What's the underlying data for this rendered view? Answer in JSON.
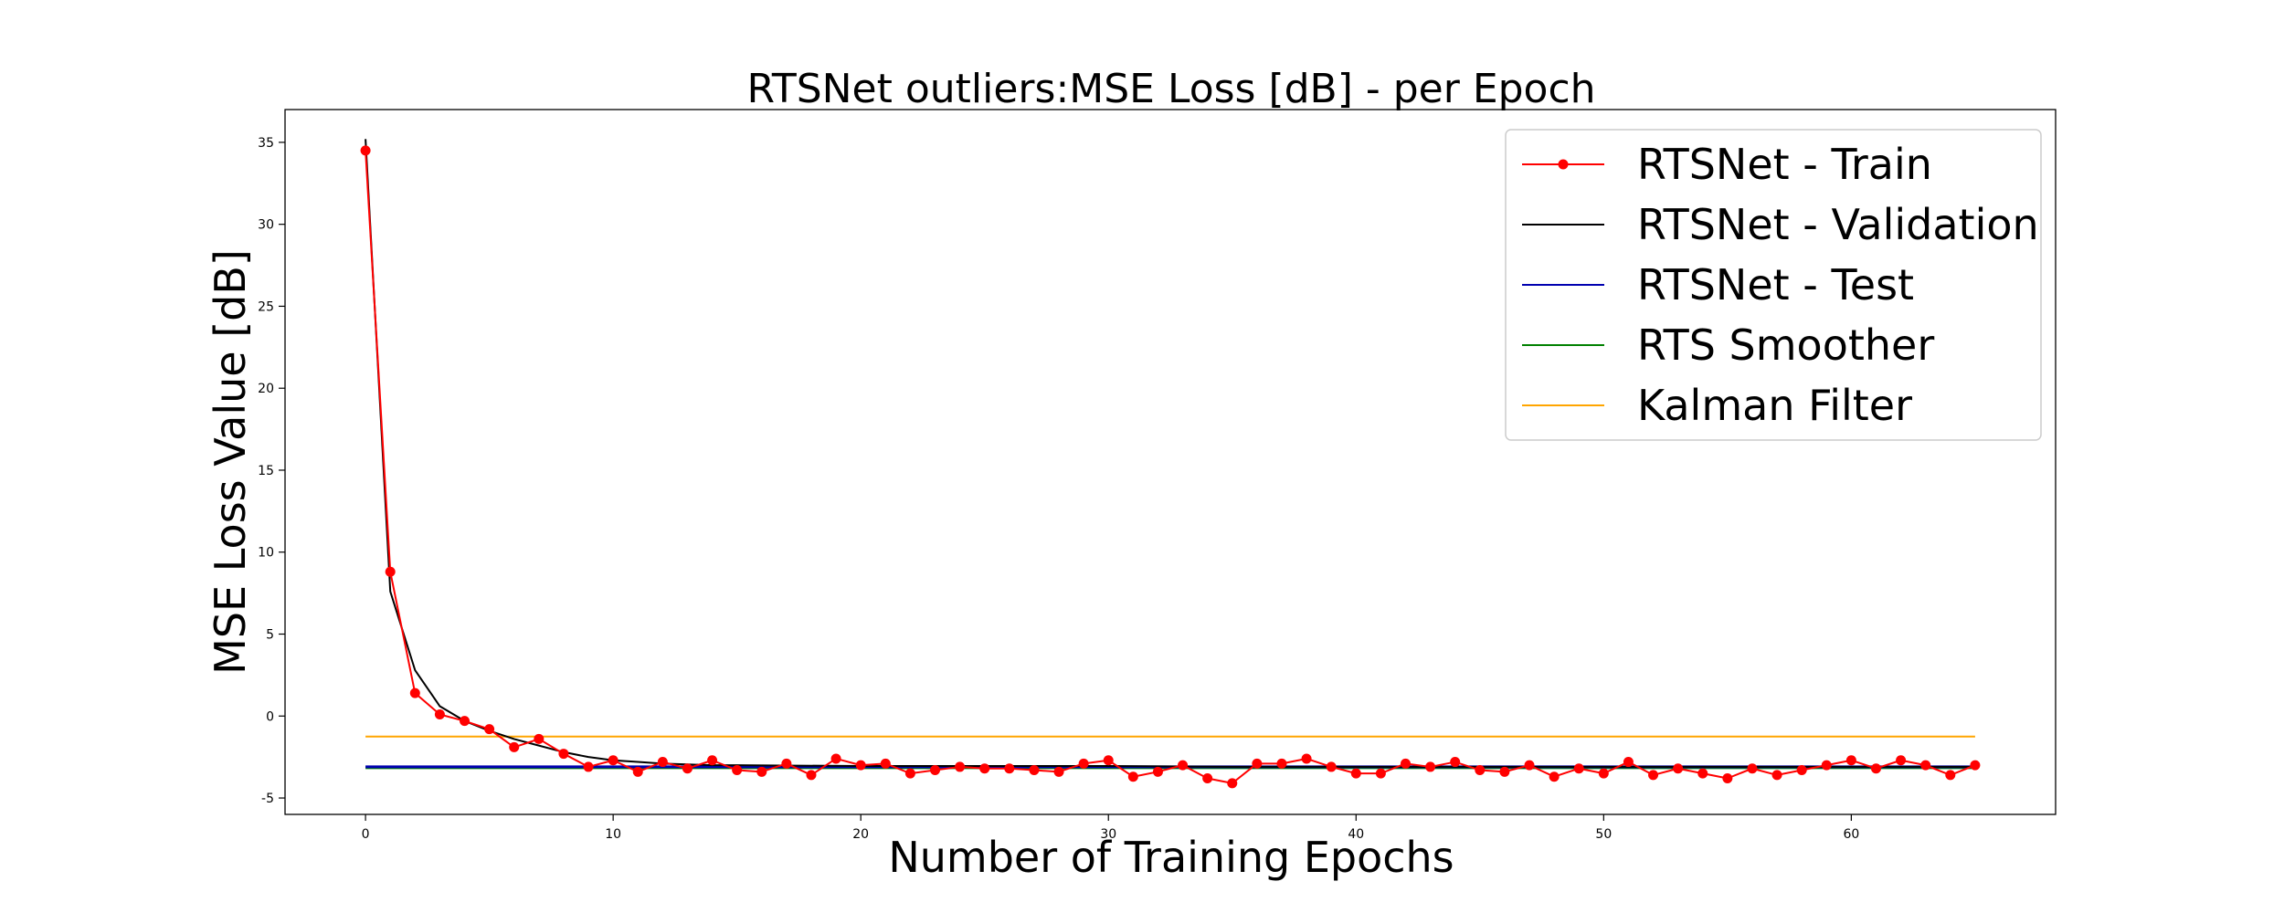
{
  "chart_data": {
    "type": "line",
    "title": "RTSNet outliers:MSE Loss [dB] - per Epoch",
    "xlabel": "Number of Training Epochs",
    "ylabel": "MSE Loss Value [dB]",
    "xlim": [
      -3.25,
      68.25
    ],
    "ylim": [
      -6.0,
      37.0
    ],
    "xticks": [
      0,
      10,
      20,
      30,
      40,
      50,
      60
    ],
    "yticks": [
      -5,
      0,
      5,
      10,
      15,
      20,
      25,
      30,
      35
    ],
    "grid": false,
    "legend_position": "upper-right",
    "series": [
      {
        "name": "RTSNet - Train",
        "color": "#ff0000",
        "marker": "circle",
        "x": [
          0,
          1,
          2,
          3,
          4,
          5,
          6,
          7,
          8,
          9,
          10,
          11,
          12,
          13,
          14,
          15,
          16,
          17,
          18,
          19,
          20,
          21,
          22,
          23,
          24,
          25,
          26,
          27,
          28,
          29,
          30,
          31,
          32,
          33,
          34,
          35,
          36,
          37,
          38,
          39,
          40,
          41,
          42,
          43,
          44,
          45,
          46,
          47,
          48,
          49,
          50,
          51,
          52,
          53,
          54,
          55,
          56,
          57,
          58,
          59,
          60,
          61,
          62,
          63,
          64,
          65
        ],
        "values": [
          34.5,
          8.8,
          1.4,
          0.1,
          -0.3,
          -0.8,
          -1.9,
          -1.4,
          -2.3,
          -3.1,
          -2.7,
          -3.4,
          -2.8,
          -3.2,
          -2.7,
          -3.3,
          -3.4,
          -2.9,
          -3.6,
          -2.6,
          -3.0,
          -2.9,
          -3.5,
          -3.3,
          -3.1,
          -3.2,
          -3.2,
          -3.3,
          -3.4,
          -2.9,
          -2.7,
          -3.7,
          -3.4,
          -3.0,
          -3.8,
          -4.1,
          -2.9,
          -2.9,
          -2.6,
          -3.1,
          -3.5,
          -3.5,
          -2.9,
          -3.1,
          -2.8,
          -3.3,
          -3.4,
          -3.0,
          -3.7,
          -3.2,
          -3.5,
          -2.8,
          -3.6,
          -3.2,
          -3.5,
          -3.8,
          -3.2,
          -3.6,
          -3.3,
          -3.0,
          -2.7,
          -3.2,
          -2.7,
          -3.0,
          -3.6,
          -3.0
        ]
      },
      {
        "name": "RTSNet - Validation",
        "color": "#000000",
        "x": [
          0,
          1,
          2,
          3,
          4,
          5,
          6,
          7,
          8,
          9,
          10,
          11,
          12,
          13,
          14,
          15,
          20,
          25,
          30,
          35,
          40,
          45,
          50,
          55,
          60,
          65
        ],
        "values": [
          35.2,
          7.6,
          2.8,
          0.6,
          -0.3,
          -0.9,
          -1.4,
          -1.8,
          -2.2,
          -2.5,
          -2.7,
          -2.8,
          -2.9,
          -2.95,
          -3.0,
          -3.0,
          -3.05,
          -3.05,
          -3.05,
          -3.1,
          -3.1,
          -3.1,
          -3.1,
          -3.1,
          -3.1,
          -3.1
        ]
      },
      {
        "name": "RTSNet - Test",
        "color": "#0000b0",
        "x": [
          0,
          65
        ],
        "values": [
          -3.1,
          -3.1
        ]
      },
      {
        "name": "RTS Smoother",
        "color": "#008000",
        "x": [
          0,
          65
        ],
        "values": [
          -3.15,
          -3.15
        ]
      },
      {
        "name": "Kalman Filter",
        "color": "#ffa500",
        "x": [
          0,
          65
        ],
        "values": [
          -1.25,
          -1.25
        ]
      }
    ]
  }
}
